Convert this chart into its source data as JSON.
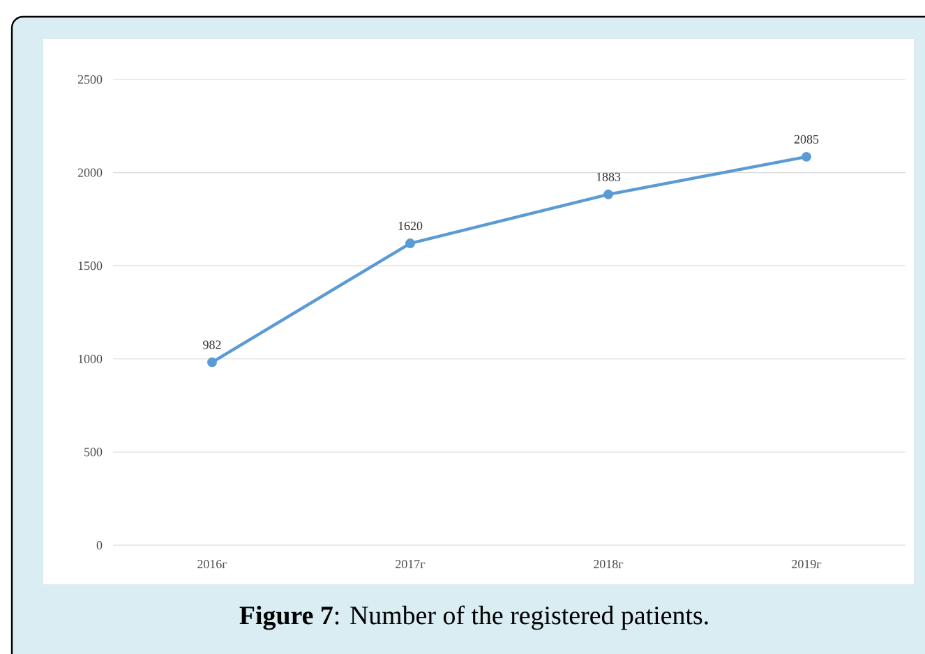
{
  "chart_data": {
    "type": "line",
    "title": "**Figure 7**: Number of the registered patients.",
    "categories": [
      "2016г",
      "2017г",
      "2018г",
      "2019г"
    ],
    "values": [
      982,
      1620,
      1883,
      2085
    ],
    "color": "#5b9bd5",
    "ylim": [
      0,
      2500
    ],
    "yticks": [
      0,
      500,
      1000,
      1500,
      2000,
      2500
    ],
    "grid": "y",
    "marker": "circle",
    "line_style": "solid",
    "data_labels": true
  }
}
